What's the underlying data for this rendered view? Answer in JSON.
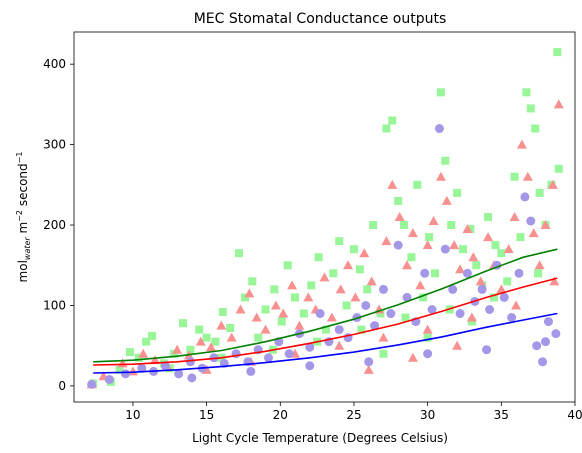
{
  "chart_data": {
    "type": "scatter",
    "title": "MEC Stomatal Conductance outputs",
    "xlabel": "Light Cycle Temperature (Degrees Celsius)",
    "ylabel": {
      "base": "mol",
      "subscript": "water",
      "mid": " m",
      "sup1": "−2",
      "mid2": " second",
      "sup2": "−1"
    },
    "xlim": [
      6.0,
      40.0
    ],
    "ylim": [
      -20,
      440
    ],
    "x_ticks": [
      10,
      15,
      20,
      25,
      30,
      35,
      40
    ],
    "y_ticks": [
      0,
      100,
      200,
      300,
      400
    ],
    "grid": false,
    "series": [
      {
        "marker": "square",
        "color": "#98f598",
        "points": [
          [
            7.3,
            3
          ],
          [
            8.5,
            5
          ],
          [
            9.1,
            20
          ],
          [
            9.8,
            42
          ],
          [
            10.4,
            35
          ],
          [
            10.9,
            55
          ],
          [
            11.3,
            62
          ],
          [
            12.1,
            28
          ],
          [
            12.8,
            40
          ],
          [
            13.4,
            78
          ],
          [
            13.9,
            45
          ],
          [
            14.5,
            70
          ],
          [
            15.0,
            60
          ],
          [
            15.6,
            55
          ],
          [
            16.1,
            92
          ],
          [
            16.6,
            72
          ],
          [
            17.2,
            165
          ],
          [
            17.6,
            110
          ],
          [
            18.1,
            130
          ],
          [
            18.5,
            60
          ],
          [
            19.0,
            95
          ],
          [
            19.6,
            120
          ],
          [
            20.1,
            80
          ],
          [
            20.5,
            150
          ],
          [
            21.0,
            110
          ],
          [
            21.6,
            90
          ],
          [
            22.1,
            125
          ],
          [
            22.6,
            160
          ],
          [
            23.1,
            70
          ],
          [
            23.6,
            140
          ],
          [
            24.0,
            180
          ],
          [
            24.5,
            100
          ],
          [
            25.0,
            170
          ],
          [
            25.4,
            145
          ],
          [
            25.9,
            120
          ],
          [
            26.3,
            200
          ],
          [
            26.8,
            90
          ],
          [
            27.2,
            320
          ],
          [
            27.6,
            330
          ],
          [
            28.0,
            230
          ],
          [
            28.4,
            200
          ],
          [
            28.9,
            160
          ],
          [
            29.3,
            250
          ],
          [
            29.7,
            110
          ],
          [
            30.1,
            185
          ],
          [
            30.5,
            140
          ],
          [
            30.9,
            365
          ],
          [
            31.2,
            280
          ],
          [
            31.6,
            200
          ],
          [
            32.0,
            240
          ],
          [
            32.4,
            170
          ],
          [
            32.9,
            195
          ],
          [
            33.3,
            150
          ],
          [
            33.7,
            125
          ],
          [
            34.1,
            210
          ],
          [
            34.6,
            175
          ],
          [
            35.0,
            165
          ],
          [
            35.4,
            130
          ],
          [
            35.9,
            260
          ],
          [
            36.3,
            185
          ],
          [
            36.7,
            365
          ],
          [
            37.0,
            345
          ],
          [
            37.3,
            320
          ],
          [
            37.6,
            240
          ],
          [
            38.0,
            200
          ],
          [
            38.4,
            250
          ],
          [
            38.8,
            415
          ],
          [
            38.9,
            270
          ],
          [
            12.5,
            22
          ],
          [
            16.0,
            35
          ],
          [
            19.5,
            45
          ],
          [
            22.5,
            55
          ],
          [
            25.5,
            70
          ],
          [
            28.5,
            85
          ],
          [
            31.5,
            95
          ],
          [
            34.5,
            110
          ],
          [
            37.5,
            140
          ],
          [
            27.0,
            40
          ],
          [
            30.0,
            60
          ],
          [
            33.0,
            80
          ]
        ]
      },
      {
        "marker": "triangle",
        "color": "#f99090",
        "points": [
          [
            7.2,
            2
          ],
          [
            8.0,
            12
          ],
          [
            9.3,
            28
          ],
          [
            10.0,
            18
          ],
          [
            10.7,
            40
          ],
          [
            11.5,
            32
          ],
          [
            12.3,
            25
          ],
          [
            13.0,
            45
          ],
          [
            13.8,
            38
          ],
          [
            14.6,
            55
          ],
          [
            15.3,
            48
          ],
          [
            16.0,
            75
          ],
          [
            16.7,
            60
          ],
          [
            17.3,
            95
          ],
          [
            17.9,
            115
          ],
          [
            18.4,
            85
          ],
          [
            19.0,
            70
          ],
          [
            19.7,
            100
          ],
          [
            20.2,
            90
          ],
          [
            20.8,
            125
          ],
          [
            21.3,
            75
          ],
          [
            21.9,
            110
          ],
          [
            22.4,
            95
          ],
          [
            23.0,
            135
          ],
          [
            23.5,
            85
          ],
          [
            24.1,
            120
          ],
          [
            24.6,
            150
          ],
          [
            25.1,
            110
          ],
          [
            25.7,
            165
          ],
          [
            26.2,
            130
          ],
          [
            26.7,
            95
          ],
          [
            27.2,
            180
          ],
          [
            27.6,
            250
          ],
          [
            28.1,
            210
          ],
          [
            28.6,
            150
          ],
          [
            29.0,
            190
          ],
          [
            29.5,
            125
          ],
          [
            30.0,
            175
          ],
          [
            30.4,
            205
          ],
          [
            30.9,
            260
          ],
          [
            31.3,
            230
          ],
          [
            31.8,
            175
          ],
          [
            32.2,
            145
          ],
          [
            32.7,
            195
          ],
          [
            33.1,
            160
          ],
          [
            33.6,
            130
          ],
          [
            34.1,
            185
          ],
          [
            34.5,
            150
          ],
          [
            35.0,
            120
          ],
          [
            35.5,
            170
          ],
          [
            35.9,
            210
          ],
          [
            36.4,
            300
          ],
          [
            36.8,
            260
          ],
          [
            37.2,
            190
          ],
          [
            37.6,
            150
          ],
          [
            38.0,
            200
          ],
          [
            38.5,
            250
          ],
          [
            38.9,
            350
          ],
          [
            15.0,
            20
          ],
          [
            18.0,
            30
          ],
          [
            21.0,
            40
          ],
          [
            24.0,
            50
          ],
          [
            27.0,
            60
          ],
          [
            30.0,
            70
          ],
          [
            33.0,
            85
          ],
          [
            36.0,
            100
          ],
          [
            38.6,
            130
          ],
          [
            26.0,
            20
          ],
          [
            29.0,
            35
          ],
          [
            32.0,
            50
          ]
        ]
      },
      {
        "marker": "circle",
        "color": "#a597e8",
        "points": [
          [
            7.2,
            2
          ],
          [
            8.4,
            8
          ],
          [
            9.5,
            15
          ],
          [
            10.6,
            22
          ],
          [
            11.4,
            18
          ],
          [
            12.2,
            25
          ],
          [
            13.1,
            15
          ],
          [
            13.9,
            30
          ],
          [
            14.7,
            22
          ],
          [
            15.5,
            35
          ],
          [
            16.2,
            28
          ],
          [
            17.0,
            40
          ],
          [
            17.8,
            30
          ],
          [
            18.5,
            45
          ],
          [
            19.2,
            35
          ],
          [
            19.9,
            55
          ],
          [
            20.6,
            40
          ],
          [
            21.3,
            65
          ],
          [
            22.0,
            48
          ],
          [
            22.7,
            90
          ],
          [
            23.3,
            55
          ],
          [
            24.0,
            70
          ],
          [
            24.6,
            60
          ],
          [
            25.2,
            85
          ],
          [
            25.8,
            100
          ],
          [
            26.4,
            75
          ],
          [
            27.0,
            120
          ],
          [
            27.5,
            90
          ],
          [
            28.0,
            175
          ],
          [
            28.6,
            110
          ],
          [
            29.2,
            80
          ],
          [
            29.8,
            140
          ],
          [
            30.3,
            95
          ],
          [
            30.8,
            320
          ],
          [
            31.2,
            170
          ],
          [
            31.7,
            120
          ],
          [
            32.2,
            90
          ],
          [
            32.7,
            140
          ],
          [
            33.2,
            105
          ],
          [
            33.7,
            120
          ],
          [
            34.2,
            95
          ],
          [
            34.7,
            150
          ],
          [
            35.2,
            110
          ],
          [
            35.7,
            85
          ],
          [
            36.2,
            140
          ],
          [
            36.6,
            235
          ],
          [
            37.0,
            205
          ],
          [
            37.4,
            50
          ],
          [
            37.8,
            30
          ],
          [
            38.2,
            80
          ],
          [
            38.7,
            65
          ],
          [
            14.0,
            10
          ],
          [
            18.0,
            18
          ],
          [
            22.0,
            25
          ],
          [
            26.0,
            30
          ],
          [
            30.0,
            40
          ],
          [
            34.0,
            45
          ],
          [
            38.0,
            55
          ]
        ]
      }
    ],
    "fits": [
      {
        "color": "#008000",
        "points": [
          [
            7.3,
            30
          ],
          [
            10,
            32
          ],
          [
            13,
            37
          ],
          [
            16,
            44
          ],
          [
            19,
            55
          ],
          [
            22,
            68
          ],
          [
            25,
            83
          ],
          [
            28,
            101
          ],
          [
            31,
            121
          ],
          [
            34,
            143
          ],
          [
            36.5,
            160
          ],
          [
            38.8,
            170
          ]
        ]
      },
      {
        "color": "#ff0000",
        "points": [
          [
            7.3,
            26
          ],
          [
            10,
            27
          ],
          [
            13,
            30
          ],
          [
            16,
            35
          ],
          [
            19,
            43
          ],
          [
            22,
            53
          ],
          [
            25,
            64
          ],
          [
            28,
            77
          ],
          [
            31,
            93
          ],
          [
            34,
            110
          ],
          [
            36.5,
            123
          ],
          [
            38.8,
            134
          ]
        ]
      },
      {
        "color": "#0000ff",
        "points": [
          [
            7.3,
            16
          ],
          [
            10,
            17
          ],
          [
            13,
            20
          ],
          [
            16,
            24
          ],
          [
            19,
            29
          ],
          [
            22,
            35
          ],
          [
            25,
            42
          ],
          [
            28,
            51
          ],
          [
            31,
            61
          ],
          [
            34,
            73
          ],
          [
            36.5,
            82
          ],
          [
            38.8,
            90
          ]
        ]
      }
    ]
  }
}
